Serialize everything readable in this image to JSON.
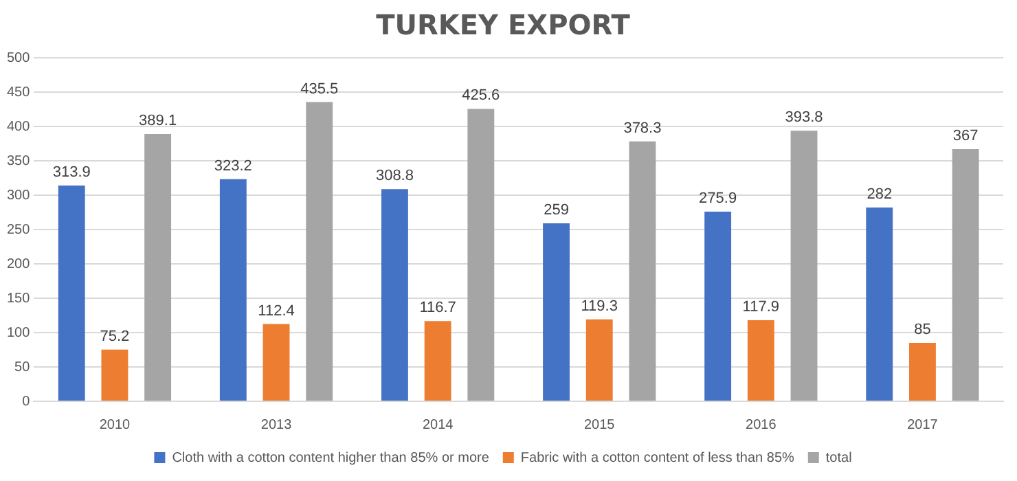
{
  "chart_data": {
    "type": "bar",
    "title": "TURKEY EXPORT",
    "categories": [
      "2010",
      "2013",
      "2014",
      "2015",
      "2016",
      "2017"
    ],
    "series": [
      {
        "name": "Cloth with a cotton content higher than 85% or more",
        "color": "#4472c4",
        "values": [
          313.9,
          323.2,
          308.8,
          259,
          275.9,
          282
        ]
      },
      {
        "name": "Fabric with a cotton content of less than 85%",
        "color": "#ed7d31",
        "values": [
          75.2,
          112.4,
          116.7,
          119.3,
          117.9,
          85
        ]
      },
      {
        "name": "total",
        "color": "#a5a5a5",
        "values": [
          389.1,
          435.5,
          425.6,
          378.3,
          393.8,
          367
        ]
      }
    ],
    "ylim": [
      0,
      500
    ],
    "yticks": [
      0,
      50,
      100,
      150,
      200,
      250,
      300,
      350,
      400,
      450,
      500
    ],
    "grid": "y",
    "legend": "bottom",
    "data_labels": true
  }
}
